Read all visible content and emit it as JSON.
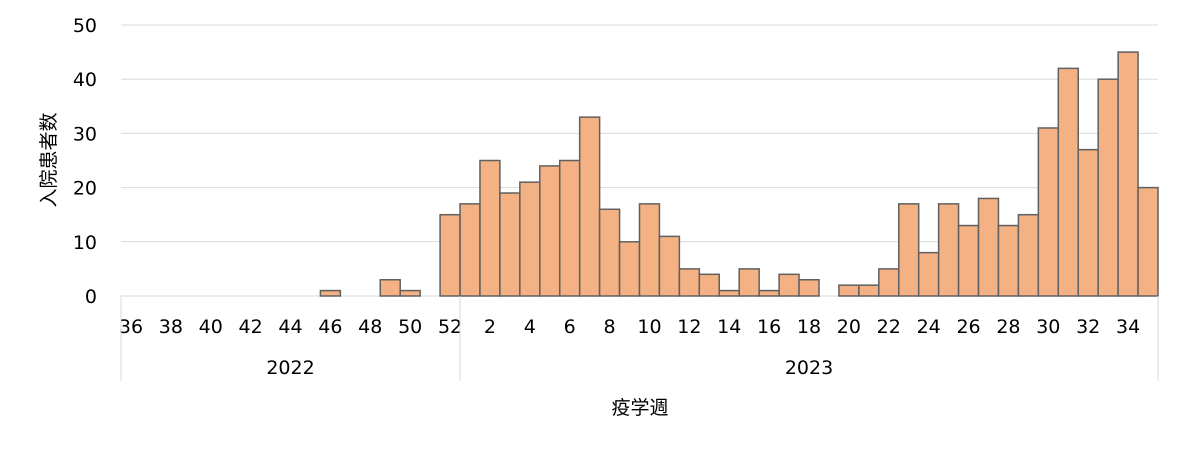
{
  "chart_data": {
    "type": "bar",
    "ylabel": "入院患者数",
    "xlabel": "疫学週",
    "ylim": [
      0,
      50
    ],
    "yticks": [
      0,
      10,
      20,
      30,
      40,
      50
    ],
    "grid": true,
    "colors": {
      "bar_fill": "#F4B183",
      "bar_stroke": "#606060",
      "grid": "#D9D9D9"
    },
    "weeks": [
      36,
      37,
      38,
      39,
      40,
      41,
      42,
      43,
      44,
      45,
      46,
      47,
      48,
      49,
      50,
      51,
      52,
      1,
      2,
      3,
      4,
      5,
      6,
      7,
      8,
      9,
      10,
      11,
      12,
      13,
      14,
      15,
      16,
      17,
      18,
      19,
      20,
      21,
      22,
      23,
      24,
      25,
      26,
      27,
      28,
      29,
      30,
      31,
      32,
      33,
      34,
      35
    ],
    "values": [
      0,
      0,
      0,
      0,
      0,
      0,
      0,
      0,
      0,
      0,
      1,
      0,
      0,
      3,
      1,
      0,
      15,
      17,
      25,
      19,
      21,
      24,
      25,
      33,
      16,
      10,
      17,
      11,
      5,
      4,
      1,
      5,
      1,
      4,
      3,
      0,
      2,
      2,
      5,
      17,
      8,
      17,
      13,
      18,
      13,
      15,
      31,
      42,
      27,
      40,
      45,
      20
    ],
    "week_tick_labels": [
      "36",
      "38",
      "40",
      "42",
      "44",
      "46",
      "48",
      "50",
      "52",
      "2",
      "4",
      "6",
      "8",
      "10",
      "12",
      "14",
      "16",
      "18",
      "20",
      "22",
      "24",
      "26",
      "28",
      "30",
      "32",
      "34"
    ],
    "years": [
      {
        "label": "2022",
        "start_index": 0,
        "count": 17
      },
      {
        "label": "2023",
        "start_index": 17,
        "count": 35
      }
    ]
  }
}
